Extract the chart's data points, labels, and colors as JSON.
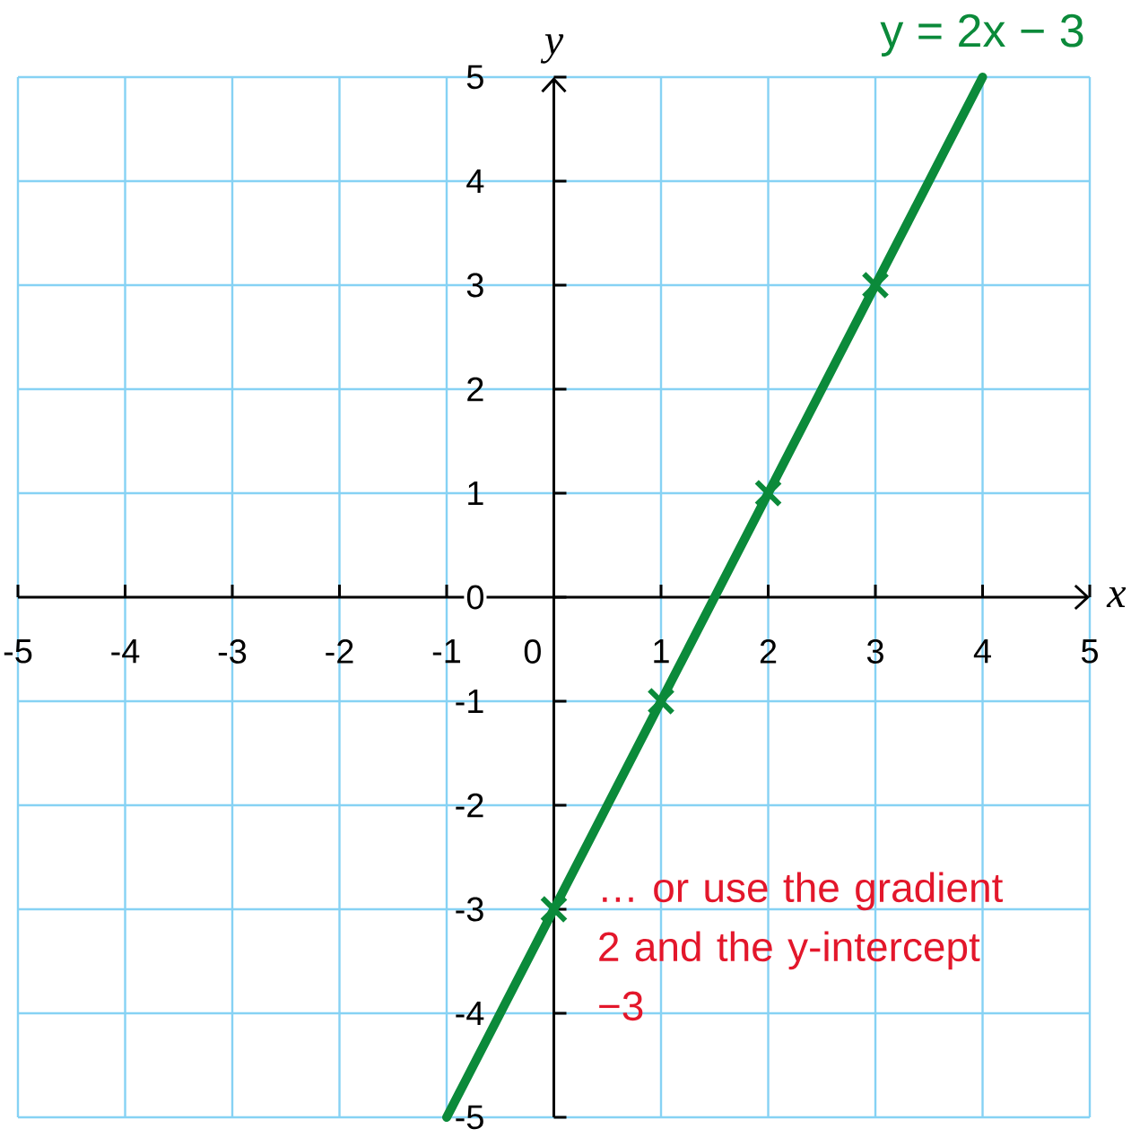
{
  "chart_data": {
    "type": "line",
    "xlabel": "x",
    "ylabel": "y",
    "xlim": [
      -5,
      5
    ],
    "ylim": [
      -5,
      5
    ],
    "xticks": [
      -5,
      -4,
      -3,
      -2,
      -1,
      0,
      1,
      2,
      3,
      4,
      5
    ],
    "yticks": [
      -5,
      -4,
      -3,
      -2,
      -1,
      0,
      1,
      2,
      3,
      4,
      5
    ],
    "grid": true,
    "series": [
      {
        "name": "y = 2x − 3",
        "color": "#0b8a3a",
        "marker": "none",
        "x": [
          -1,
          4
        ],
        "values": [
          -5,
          5
        ]
      },
      {
        "type": "scatter",
        "color": "#0b8a3a",
        "marker": "cross",
        "x": [
          0,
          1,
          2,
          3
        ],
        "values": [
          -3,
          -1,
          1,
          3
        ]
      }
    ],
    "annotations": [
      {
        "text": "… or use the gradient 2 and the y-intercept −3",
        "x": 0,
        "y": -3
      }
    ]
  }
}
